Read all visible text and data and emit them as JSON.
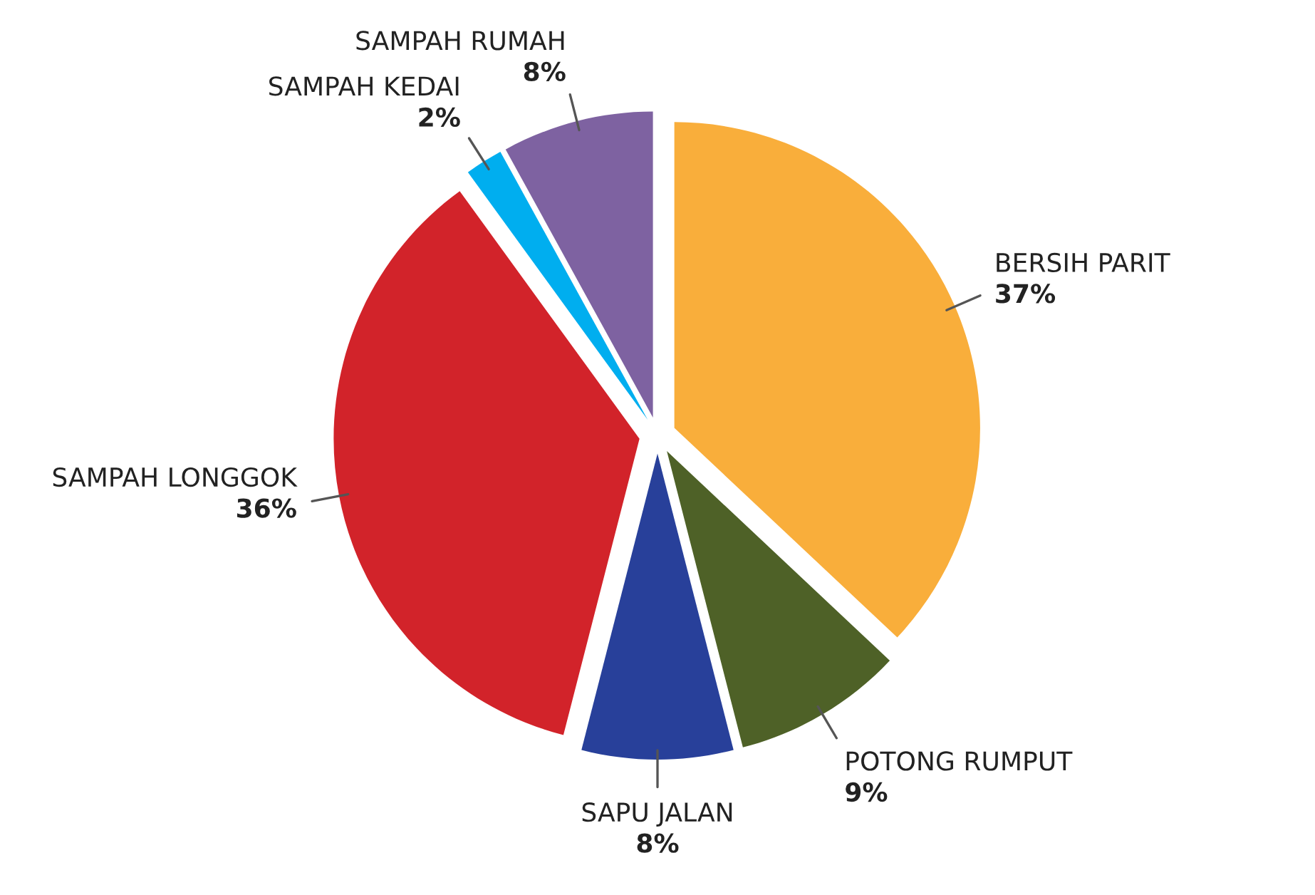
{
  "chart_data": {
    "type": "pie",
    "categories": [
      "BERSIH PARIT",
      "POTONG RUMPUT",
      "SAPU JALAN",
      "SAMPAH LONGGOK",
      "SAMPAH KEDAI",
      "SAMPAH RUMAH"
    ],
    "values": [
      37,
      9,
      8,
      36,
      2,
      8
    ],
    "value_labels": [
      "37%",
      "9%",
      "8%",
      "36%",
      "2%",
      "8%"
    ],
    "colors": [
      "#f9ae3b",
      "#4e6127",
      "#28409a",
      "#d2232a",
      "#00aeef",
      "#7e62a1"
    ]
  }
}
